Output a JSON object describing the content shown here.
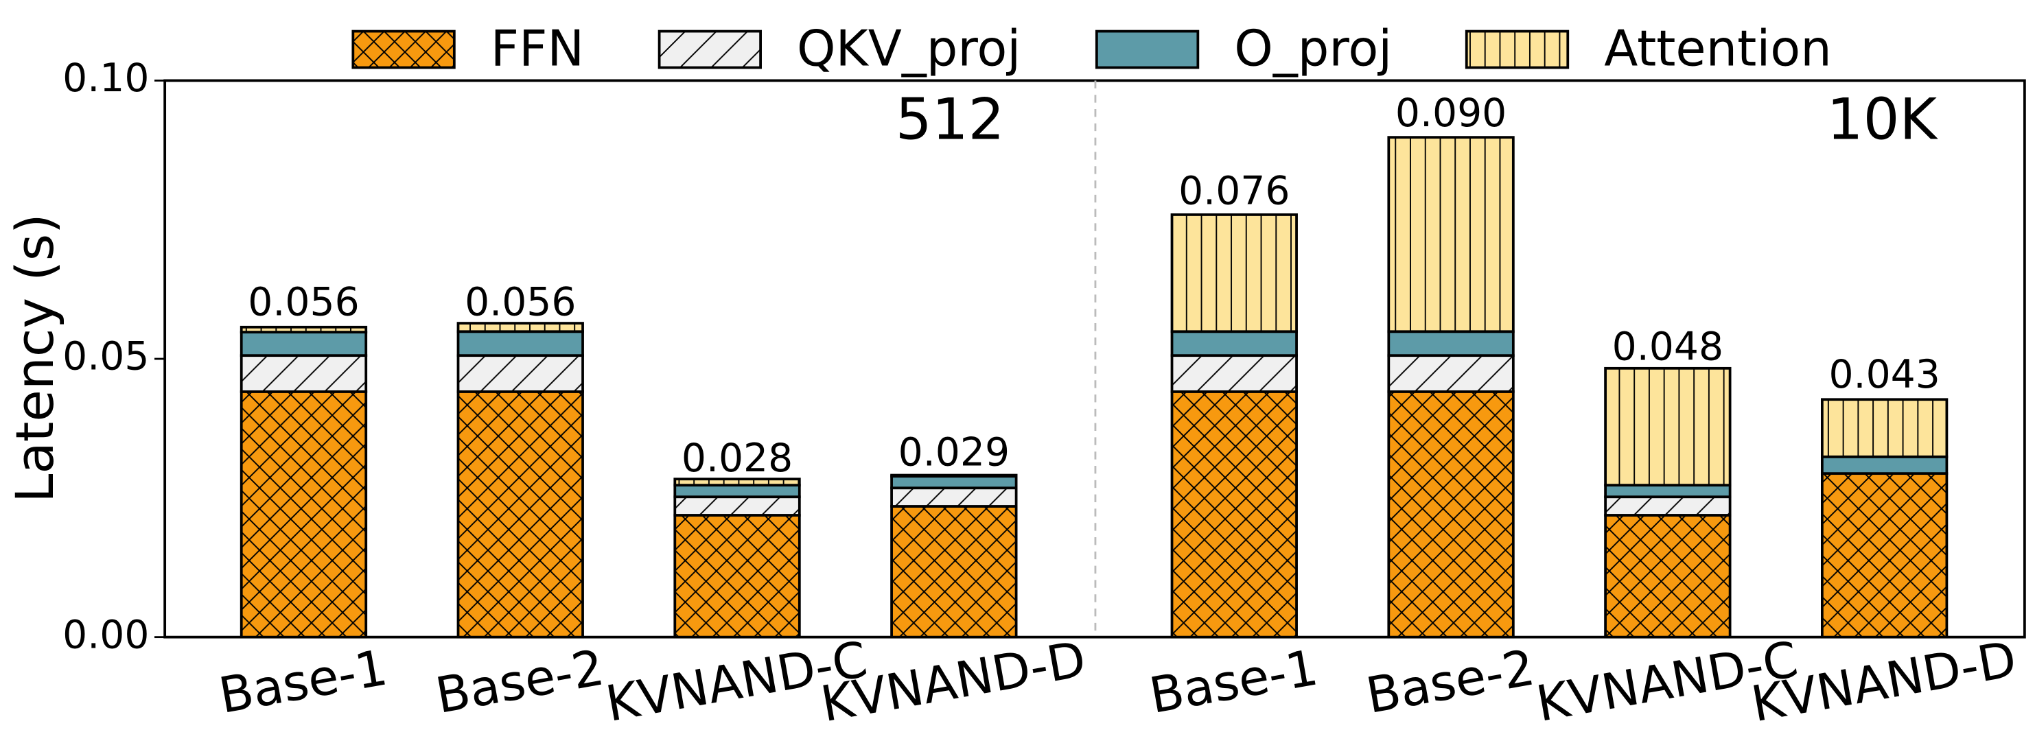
{
  "chart_data": {
    "type": "stacked_bar",
    "categories": [
      "Base-1",
      "Base-2",
      "KVNAND-C",
      "KVNAND-D",
      "Base-1",
      "Base-2",
      "KVNAND-C",
      "KVNAND-D"
    ],
    "series": [
      {
        "name": "FFN",
        "color": "#f7990f",
        "hatch": "x",
        "values": [
          0.0441,
          0.0441,
          0.0219,
          0.0235,
          0.0441,
          0.0441,
          0.0219,
          0.0294
        ]
      },
      {
        "name": "QKV_proj",
        "color": "#f0f0f0",
        "hatch": "/",
        "values": [
          0.0065,
          0.0065,
          0.0033,
          0.0033,
          0.0065,
          0.0065,
          0.0033,
          0
        ]
      },
      {
        "name": "O_proj",
        "color": "#5d9ba8",
        "hatch": "\\",
        "values": [
          0.0042,
          0.0043,
          0.0021,
          0.0021,
          0.0043,
          0.0043,
          0.0021,
          0.003
        ]
      },
      {
        "name": "Attention",
        "color": "#fde49b",
        "hatch": "|",
        "values": [
          0.0009,
          0.0015,
          0.0011,
          0.0002,
          0.021,
          0.0349,
          0.021,
          0.0103
        ]
      }
    ],
    "totals": [
      0.056,
      0.056,
      0.028,
      0.029,
      0.076,
      0.09,
      0.048,
      0.043
    ],
    "total_labels": [
      "0.056",
      "0.056",
      "0.028",
      "0.029",
      "0.076",
      "0.090",
      "0.048",
      "0.043"
    ],
    "y_label": "Latency (s)",
    "annotations": [
      "512",
      "10K"
    ],
    "ylim": [
      0,
      0.1
    ],
    "yticks": [
      {
        "value": 0,
        "label": "0.00"
      },
      {
        "value": 0.05,
        "label": "0.05"
      },
      {
        "value": 0.1,
        "label": "0.10"
      }
    ]
  }
}
